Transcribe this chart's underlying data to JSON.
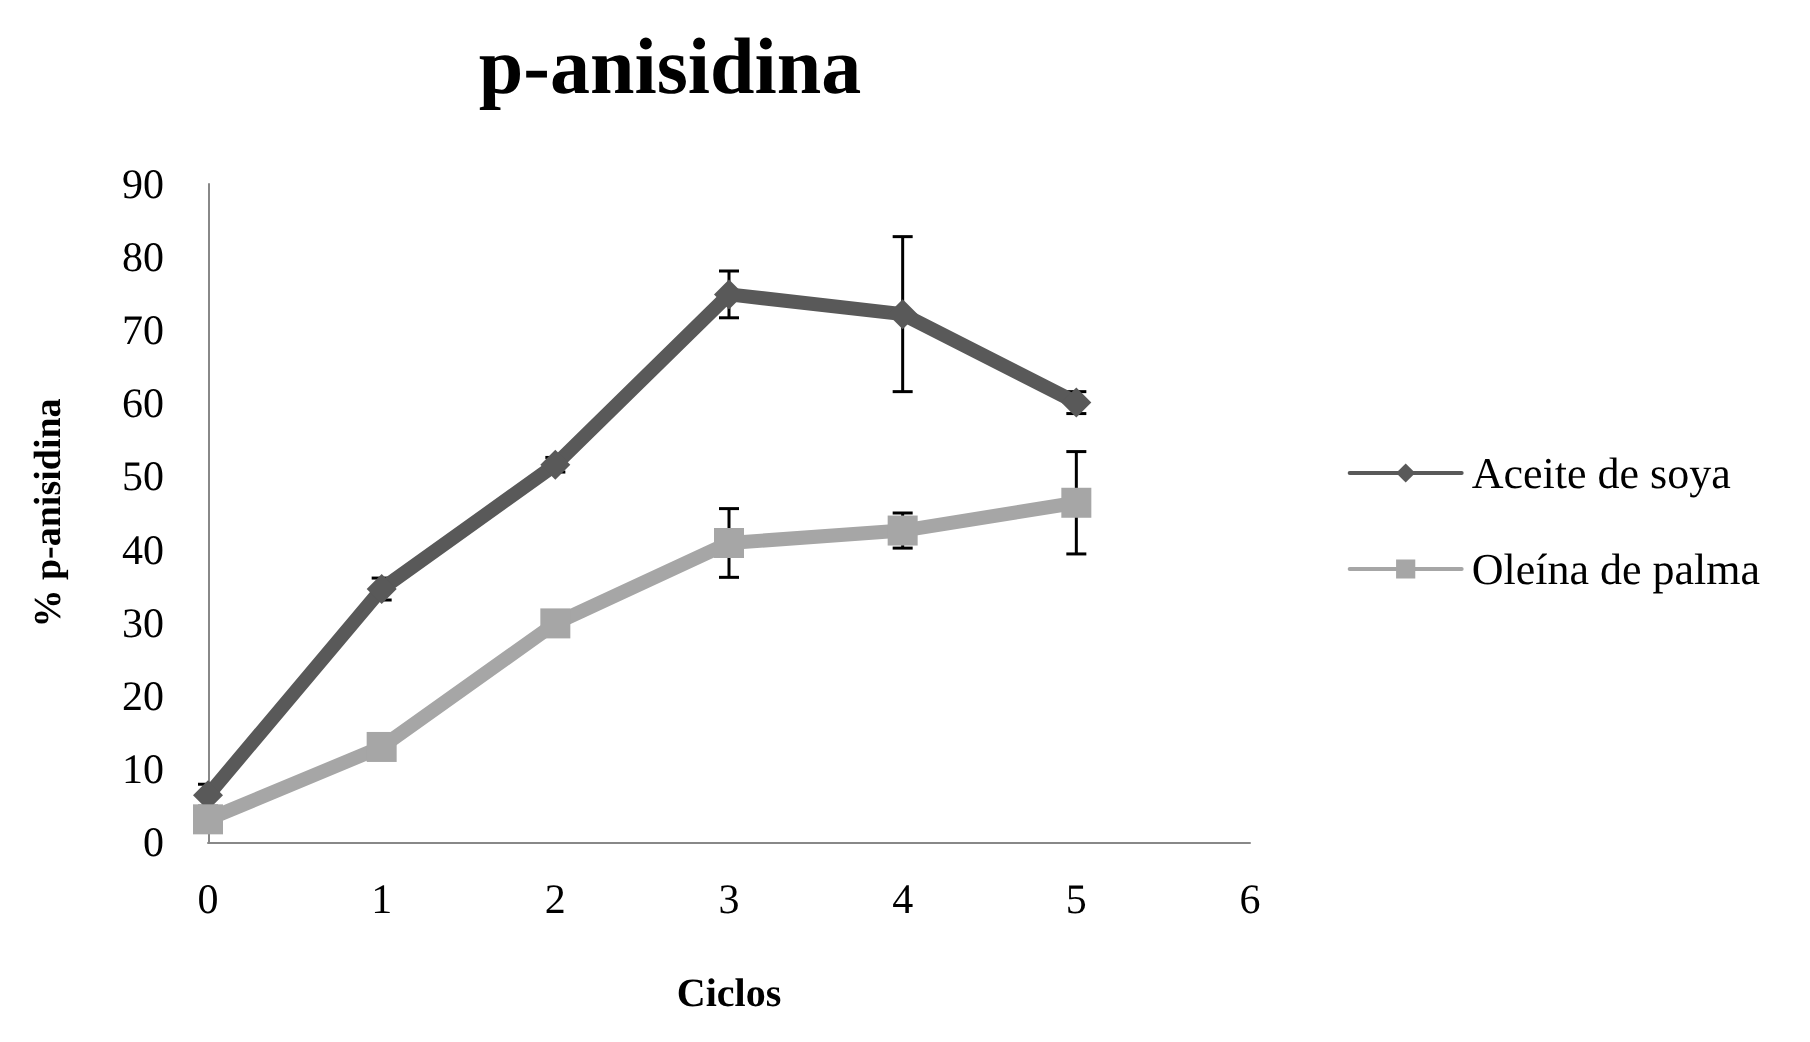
{
  "chart_data": {
    "type": "line",
    "title": "p-anisidina",
    "xlabel": "Ciclos",
    "ylabel": "% p-anisidina",
    "x": [
      0,
      1,
      2,
      3,
      4,
      5
    ],
    "series": [
      {
        "name": "Aceite de soya",
        "color": "#595959",
        "marker": "diamond",
        "values": [
          6.4,
          34.6,
          51.6,
          74.9,
          72.2,
          60.1
        ],
        "errors": [
          1.5,
          1.5,
          1,
          3.2,
          10.6,
          1.5
        ]
      },
      {
        "name": "Oleína de palma",
        "color": "#a6a6a6",
        "marker": "square",
        "values": [
          3.1,
          13,
          29.9,
          40.9,
          42.6,
          46.4
        ],
        "errors": [
          null,
          null,
          null,
          4.7,
          2.4,
          7
        ]
      }
    ],
    "xlim": [
      0,
      6
    ],
    "xticks": [
      0,
      1,
      2,
      3,
      4,
      5,
      6
    ],
    "ylim": [
      0,
      90
    ],
    "yticks": [
      0,
      10,
      20,
      30,
      40,
      50,
      60,
      70,
      80,
      90
    ],
    "grid": false,
    "legend": "right",
    "line_style": "solid"
  }
}
